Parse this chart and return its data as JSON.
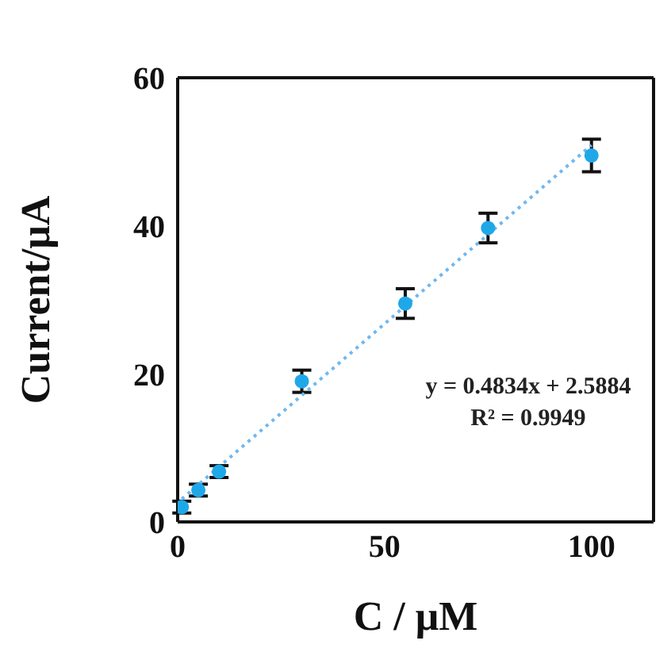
{
  "chart_data": {
    "type": "scatter",
    "xlabel": "C / μM",
    "ylabel": "Current/μA",
    "x": [
      1,
      5,
      10,
      30,
      55,
      75,
      100
    ],
    "series": [
      {
        "color": "#1fa8e8",
        "values": [
          2,
          4.3,
          6.8,
          19,
          29.5,
          39.7,
          49.5
        ],
        "errors": [
          0.8,
          0.8,
          0.8,
          1.5,
          2,
          2,
          2.2
        ],
        "marker": "circle"
      },
      {
        "type": "line",
        "color": "#6fb8f0",
        "x": [
          1,
          100
        ],
        "values": [
          3.1,
          50.9
        ],
        "line_style": "dotted",
        "marker": "none"
      }
    ],
    "xlim": [
      0,
      115
    ],
    "xticks": [
      0,
      50,
      100
    ],
    "ylim": [
      0,
      60
    ],
    "yticks": [
      0,
      20,
      40,
      60
    ],
    "annotations": [
      "y = 0.4834x + 2.5884",
      "R² = 0.9949"
    ]
  }
}
